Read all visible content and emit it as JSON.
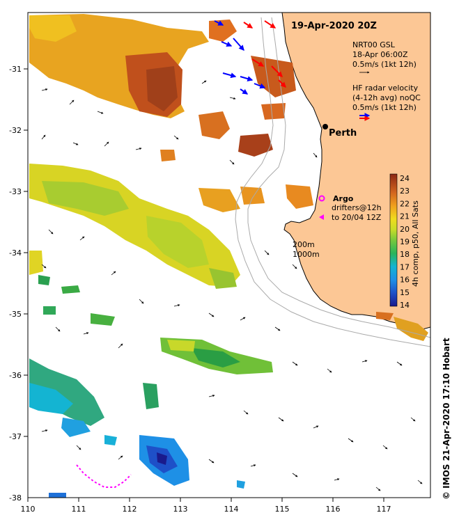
{
  "title": "19-Apr-2020 20Z",
  "place_label": "Perth",
  "legend": {
    "gsl_line1": "NRT00 GSL",
    "gsl_line2": "18-Apr 06:00Z",
    "gsl_line3": "0.5m/s (1kt 12h)",
    "hf_line1": "HF radar velocity",
    "hf_line2": "(4-12h avg) noQC",
    "hf_line3": "0.5m/s (1kt 12h)",
    "argo_label": "Argo",
    "drifters_line1": "drifters@12h",
    "drifters_line2": "to 20/04 12Z",
    "contour_200": "200m",
    "contour_1000": "1000m"
  },
  "colorbar": {
    "label": "4h comp, p50, All Sats",
    "min": 14,
    "max": 24,
    "ticks": [
      "14",
      "15",
      "16",
      "17",
      "18",
      "19",
      "20",
      "21",
      "22",
      "23",
      "24"
    ]
  },
  "axes": {
    "x_ticks": [
      "110",
      "111",
      "112",
      "113",
      "114",
      "115",
      "116",
      "117"
    ],
    "y_ticks": [
      "-31",
      "-32",
      "-33",
      "-34",
      "-35",
      "-36",
      "-37",
      "-38"
    ],
    "lon_range": [
      110,
      117.9
    ],
    "lat_range": [
      -38,
      -30.2
    ]
  },
  "credit": "© IMOS 21-Apr-2020 17:10 Hobart",
  "colors": {
    "land": "#fcc795",
    "hf_radar_a": "#0000ff",
    "hf_radar_b": "#ff0000",
    "argo": "#ff00ff",
    "contour": "#aaaaaa"
  }
}
